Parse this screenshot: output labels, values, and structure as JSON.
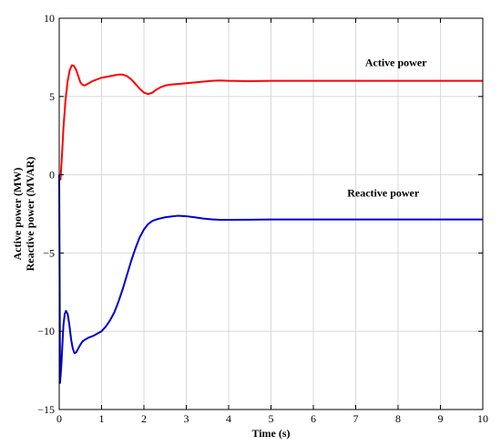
{
  "chart_data": {
    "type": "line",
    "title": "",
    "xlabel": "Time (s)",
    "ylabel_lines": [
      "Active power (MW)",
      "Reactive power (MVAR)"
    ],
    "xlim": [
      0,
      10
    ],
    "ylim": [
      -15,
      10
    ],
    "x_ticks": [
      0,
      1,
      2,
      3,
      4,
      5,
      6,
      7,
      8,
      9,
      10
    ],
    "y_ticks": [
      -15,
      -10,
      -5,
      0,
      5,
      10
    ],
    "grid": true,
    "legend": "none",
    "annotations": [
      {
        "text": "Active power",
        "x": 7.95,
        "y": 6.95
      },
      {
        "text": "Reactive power",
        "x": 7.65,
        "y": -1.4
      }
    ],
    "series": [
      {
        "color": "#ff0000",
        "x": [
          0,
          0.03,
          0.06,
          0.1,
          0.15,
          0.2,
          0.25,
          0.3,
          0.35,
          0.4,
          0.45,
          0.5,
          0.55,
          0.6,
          0.7,
          0.8,
          0.9,
          1.0,
          1.1,
          1.2,
          1.3,
          1.4,
          1.5,
          1.6,
          1.7,
          1.8,
          1.9,
          2.0,
          2.1,
          2.2,
          2.3,
          2.4,
          2.5,
          2.6,
          2.8,
          3.0,
          3.2,
          3.4,
          3.6,
          3.8,
          4.0,
          4.5,
          5.0,
          6.0,
          7.0,
          8.0,
          9.0,
          10.0
        ],
        "y": [
          0.0,
          -0.3,
          1.0,
          3.0,
          4.8,
          6.0,
          6.7,
          7.0,
          6.95,
          6.7,
          6.3,
          5.9,
          5.75,
          5.7,
          5.85,
          6.0,
          6.1,
          6.2,
          6.25,
          6.3,
          6.35,
          6.4,
          6.4,
          6.3,
          6.1,
          5.8,
          5.5,
          5.25,
          5.15,
          5.25,
          5.45,
          5.6,
          5.7,
          5.75,
          5.8,
          5.85,
          5.9,
          5.95,
          6.0,
          6.02,
          6.0,
          5.98,
          6.0,
          6.0,
          6.0,
          6.0,
          6.0,
          6.0
        ]
      },
      {
        "color": "#0000cc",
        "x": [
          0,
          0.02,
          0.05,
          0.08,
          0.1,
          0.13,
          0.16,
          0.2,
          0.24,
          0.28,
          0.32,
          0.36,
          0.4,
          0.45,
          0.5,
          0.55,
          0.6,
          0.7,
          0.8,
          0.9,
          1.0,
          1.1,
          1.2,
          1.3,
          1.4,
          1.5,
          1.6,
          1.7,
          1.8,
          1.9,
          2.0,
          2.1,
          2.2,
          2.3,
          2.4,
          2.5,
          2.6,
          2.8,
          3.0,
          3.2,
          3.4,
          3.6,
          3.8,
          4.0,
          4.5,
          5.0,
          6.0,
          7.0,
          8.0,
          9.0,
          10.0
        ],
        "y": [
          0.0,
          -13.3,
          -12.2,
          -10.6,
          -9.6,
          -8.9,
          -8.7,
          -8.9,
          -9.6,
          -10.5,
          -11.1,
          -11.4,
          -11.35,
          -11.1,
          -10.85,
          -10.65,
          -10.55,
          -10.4,
          -10.3,
          -10.15,
          -10.0,
          -9.7,
          -9.3,
          -8.8,
          -8.1,
          -7.3,
          -6.4,
          -5.5,
          -4.7,
          -4.0,
          -3.5,
          -3.15,
          -2.95,
          -2.85,
          -2.78,
          -2.72,
          -2.68,
          -2.62,
          -2.65,
          -2.72,
          -2.8,
          -2.85,
          -2.88,
          -2.88,
          -2.87,
          -2.86,
          -2.86,
          -2.86,
          -2.86,
          -2.86,
          -2.86
        ]
      }
    ]
  }
}
